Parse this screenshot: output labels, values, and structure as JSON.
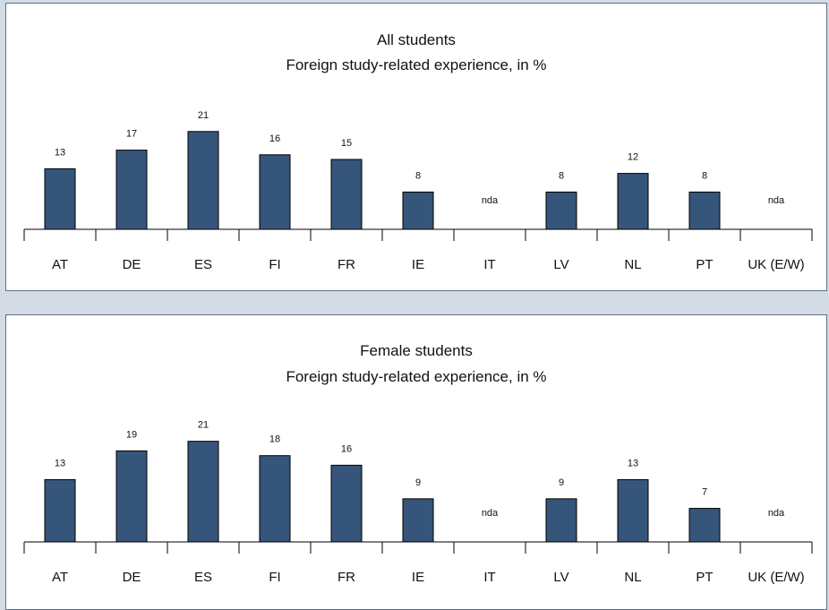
{
  "chart_data": [
    {
      "type": "bar",
      "title": "All students",
      "subtitle": "Foreign study-related experience, in %",
      "categories": [
        "AT",
        "DE",
        "ES",
        "FI",
        "FR",
        "IE",
        "IT",
        "LV",
        "NL",
        "PT",
        "UK (E/W)"
      ],
      "values": [
        13,
        17,
        21,
        16,
        15,
        8,
        null,
        8,
        12,
        8,
        null
      ],
      "value_labels": [
        "13",
        "17",
        "21",
        "16",
        "15",
        "8",
        "nda",
        "8",
        "12",
        "8",
        "nda"
      ],
      "ylim": [
        0,
        25
      ],
      "grid": false,
      "bar_color": "#36557a"
    },
    {
      "type": "bar",
      "title": "Female students",
      "subtitle": "Foreign study-related experience, in %",
      "categories": [
        "AT",
        "DE",
        "ES",
        "FI",
        "FR",
        "IE",
        "IT",
        "LV",
        "NL",
        "PT",
        "UK (E/W)"
      ],
      "values": [
        13,
        19,
        21,
        18,
        16,
        9,
        null,
        9,
        13,
        7,
        null
      ],
      "value_labels": [
        "13",
        "19",
        "21",
        "18",
        "16",
        "9",
        "nda",
        "9",
        "13",
        "7",
        "nda"
      ],
      "ylim": [
        0,
        25
      ],
      "grid": false,
      "bar_color": "#36557a"
    }
  ]
}
